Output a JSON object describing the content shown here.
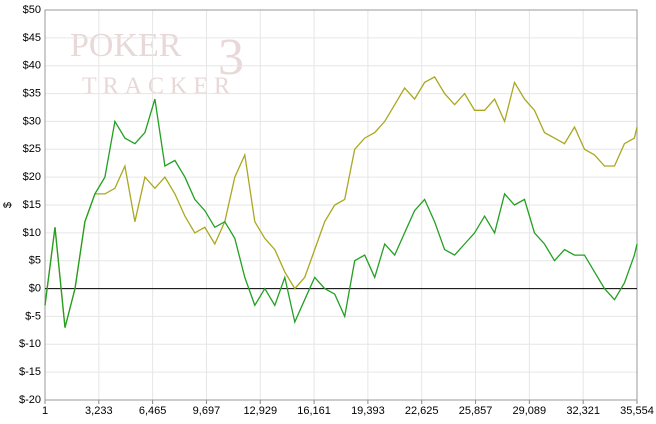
{
  "chart_data": {
    "type": "line",
    "y_label": "$",
    "watermark": [
      "POKER",
      "TRACKER",
      "3"
    ],
    "x": [
      1,
      600,
      1200,
      1800,
      2400,
      3000,
      3600,
      4200,
      4800,
      5400,
      6000,
      6600,
      7200,
      7800,
      8400,
      9000,
      9600,
      10200,
      10800,
      11400,
      12000,
      12600,
      13200,
      13800,
      14400,
      15000,
      15600,
      16200,
      16800,
      17400,
      18000,
      18600,
      19200,
      19800,
      20400,
      21000,
      21600,
      22200,
      22800,
      23400,
      24000,
      24600,
      25200,
      25800,
      26400,
      27000,
      27600,
      28200,
      28800,
      29400,
      30000,
      30600,
      31200,
      31800,
      32400,
      33000,
      33600,
      34200,
      34800,
      35400,
      35554
    ],
    "series": [
      {
        "color": "#aaa820",
        "values": [
          -3,
          11,
          -7,
          0,
          12,
          17,
          17,
          18,
          22,
          12,
          20,
          18,
          20,
          17,
          13,
          10,
          11,
          8,
          12,
          20,
          24,
          12,
          9,
          7,
          3,
          0,
          2,
          7,
          12,
          15,
          16,
          25,
          27,
          28,
          30,
          33,
          36,
          34,
          37,
          38,
          35,
          33,
          35,
          32,
          32,
          34,
          30,
          37,
          34,
          32,
          28,
          27,
          26,
          29,
          25,
          24,
          22,
          22,
          26,
          27,
          29
        ]
      },
      {
        "color": "#22a022",
        "values": [
          -3,
          11,
          -7,
          0,
          12,
          17,
          20,
          30,
          27,
          26,
          28,
          34,
          22,
          23,
          20,
          16,
          14,
          11,
          12,
          9,
          2,
          -3,
          0,
          -3,
          2,
          -6,
          -2,
          2,
          0,
          -1,
          -5,
          5,
          6,
          2,
          8,
          6,
          10,
          14,
          16,
          12,
          7,
          6,
          8,
          10,
          13,
          10,
          17,
          15,
          16,
          10,
          8,
          5,
          7,
          6,
          6,
          3,
          0,
          -2,
          1,
          6,
          8
        ]
      }
    ],
    "hline": 0,
    "xlim": [
      1,
      35554
    ],
    "xticks": [
      1,
      {
        "value": 3233,
        "label": "3,233"
      },
      {
        "value": 6465,
        "label": "6,465"
      },
      {
        "value": 9697,
        "label": "9,697"
      },
      {
        "value": 12929,
        "label": "12,929"
      },
      {
        "value": 16161,
        "label": "16,161"
      },
      {
        "value": 19393,
        "label": "19,393"
      },
      {
        "value": 22625,
        "label": "22,625"
      },
      {
        "value": 25857,
        "label": "25,857"
      },
      {
        "value": 29089,
        "label": "29,089"
      },
      {
        "value": 32321,
        "label": "32,321"
      },
      {
        "value": 35554,
        "label": "35,554"
      }
    ],
    "ylim": [
      -20,
      50
    ],
    "yticks": [
      {
        "value": -20,
        "label": "$-20"
      },
      {
        "value": -15,
        "label": "$-15"
      },
      {
        "value": -10,
        "label": "$-10"
      },
      {
        "value": -5,
        "label": "$-5"
      },
      {
        "value": 0,
        "label": "$0"
      },
      {
        "value": 5,
        "label": "$5"
      },
      {
        "value": 10,
        "label": "$10"
      },
      {
        "value": 15,
        "label": "$15"
      },
      {
        "value": 20,
        "label": "$20"
      },
      {
        "value": 25,
        "label": "$25"
      },
      {
        "value": 30,
        "label": "$30"
      },
      {
        "value": 35,
        "label": "$35"
      },
      {
        "value": 40,
        "label": "$40"
      },
      {
        "value": 45,
        "label": "$45"
      },
      {
        "value": 50,
        "label": "$50"
      }
    ],
    "grid": true
  }
}
